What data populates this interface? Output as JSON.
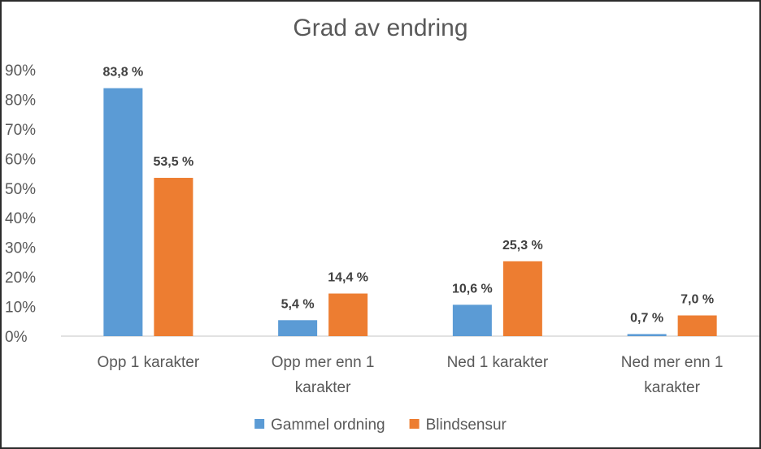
{
  "chart_data": {
    "type": "bar",
    "title": "Grad av endring",
    "xlabel": "",
    "ylabel": "",
    "categories": [
      [
        "Opp 1 karakter"
      ],
      [
        "Opp mer enn 1",
        "karakter"
      ],
      [
        "Ned 1 karakter"
      ],
      [
        "Ned mer enn 1",
        "karakter"
      ]
    ],
    "series": [
      {
        "name": "Gammel ordning",
        "color": "#5b9bd5",
        "values": [
          83.8,
          5.4,
          10.6,
          0.7
        ],
        "labels": [
          "83,8 %",
          "5,4 %",
          "10,6 %",
          "0,7 %"
        ]
      },
      {
        "name": "Blindsensur",
        "color": "#ed7d31",
        "values": [
          53.5,
          14.4,
          25.3,
          7.0
        ],
        "labels": [
          "53,5 %",
          "14,4 %",
          "25,3 %",
          "7,0 %"
        ]
      }
    ],
    "yticks": [
      "0%",
      "10%",
      "20%",
      "30%",
      "40%",
      "50%",
      "60%",
      "70%",
      "80%",
      "90%"
    ],
    "ylim": [
      0,
      90
    ],
    "grid": false,
    "legend": "bottom"
  }
}
